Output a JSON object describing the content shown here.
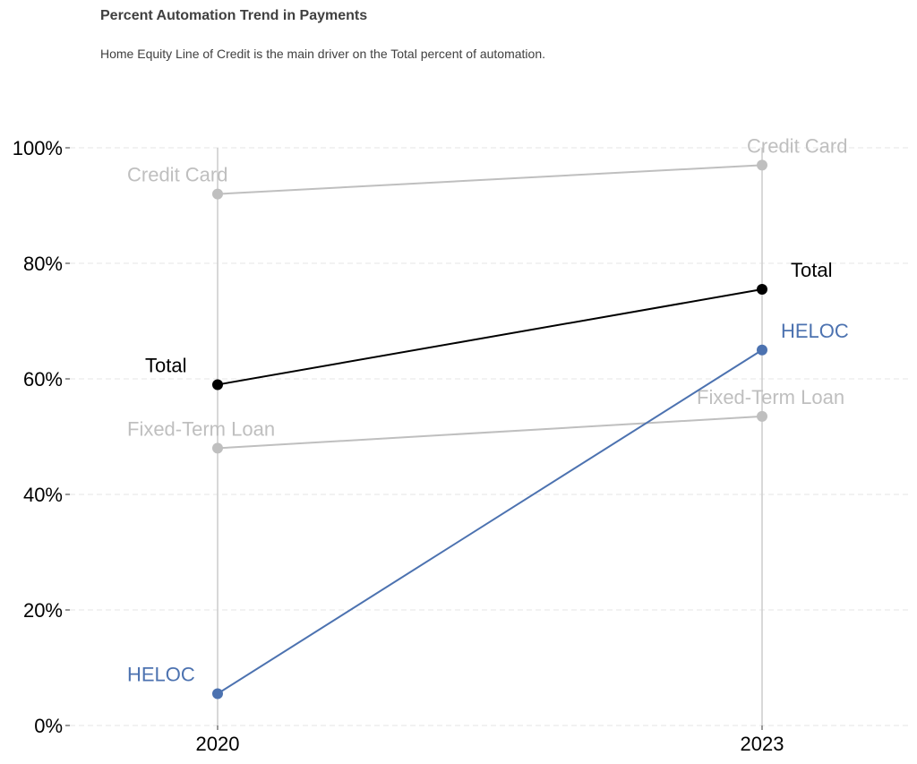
{
  "chart_data": {
    "type": "line",
    "title": "Percent Automation Trend in Payments",
    "subtitle": "Home Equity Line of Credit is the main driver on the Total percent of automation.",
    "x": [
      "2020",
      "2023"
    ],
    "ylim": [
      0,
      100
    ],
    "y_ticks": [
      0,
      20,
      40,
      60,
      80,
      100
    ],
    "y_tick_labels": [
      "0%",
      "20%",
      "40%",
      "60%",
      "80%",
      "100%"
    ],
    "grid": true,
    "series": [
      {
        "name": "Credit Card",
        "values": [
          92,
          97
        ],
        "color": "#bfbfbf"
      },
      {
        "name": "Fixed-Term Loan",
        "values": [
          48,
          53.5
        ],
        "color": "#bfbfbf"
      },
      {
        "name": "HELOC",
        "values": [
          5.5,
          65
        ],
        "color": "#4c72b0"
      },
      {
        "name": "Total",
        "values": [
          59,
          75.5
        ],
        "color": "#000000"
      }
    ]
  }
}
